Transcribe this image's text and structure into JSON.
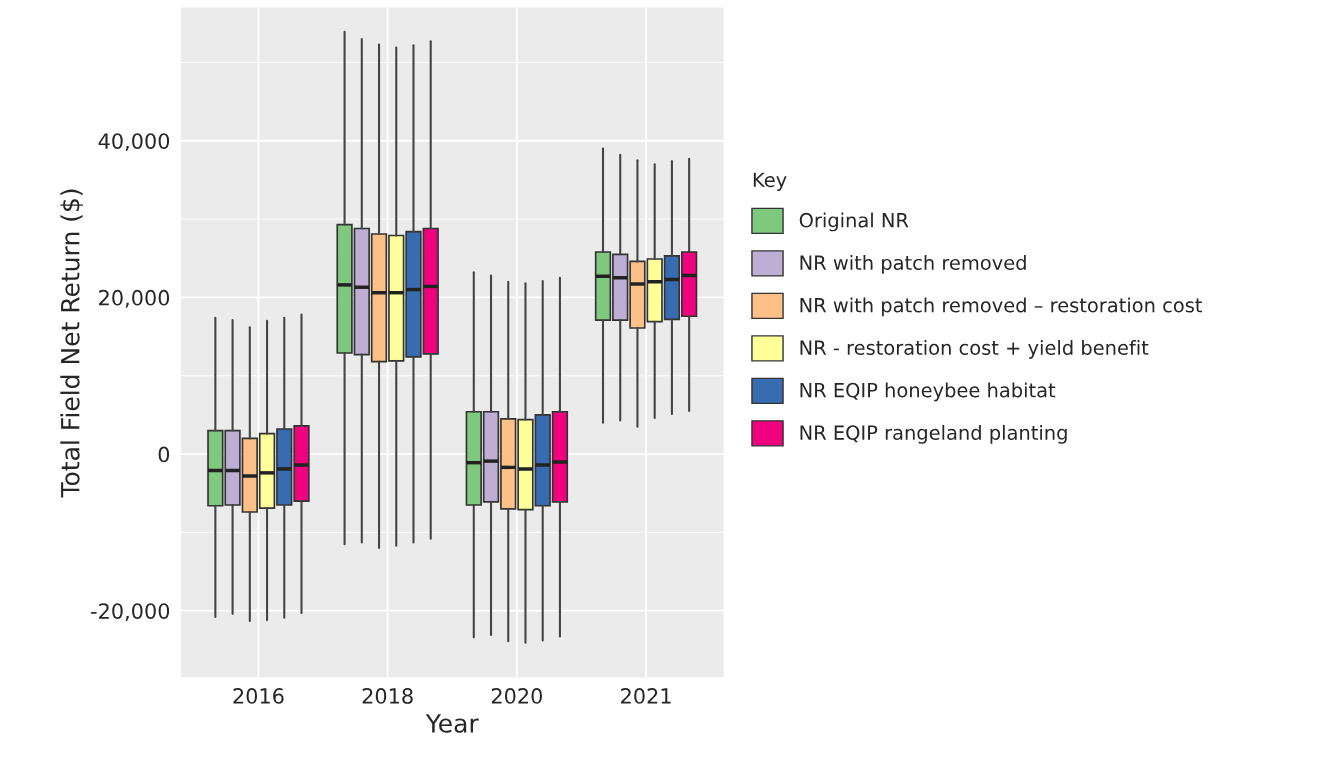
{
  "chart_data": {
    "type": "box",
    "xlabel": "Year",
    "ylabel": "Total Field Net Return ($)",
    "legend_title": "Key",
    "legend": "right",
    "grid": true,
    "categories": [
      "2016",
      "2018",
      "2020",
      "2021"
    ],
    "ylim": [
      -28500,
      57000
    ],
    "yticks": [
      {
        "value": -20000,
        "label": "-20,000"
      },
      {
        "value": 0,
        "label": "0"
      },
      {
        "value": 20000,
        "label": "20,000"
      },
      {
        "value": 40000,
        "label": "40,000"
      }
    ],
    "series": [
      {
        "name": "Original NR",
        "color": "#7fc97f",
        "boxes": [
          {
            "low": -20800,
            "q1": -6600,
            "median": -2100,
            "q3": 3000,
            "high": 17400
          },
          {
            "low": -11500,
            "q1": 12900,
            "median": 21600,
            "q3": 29300,
            "high": 53900
          },
          {
            "low": -23400,
            "q1": -6500,
            "median": -1100,
            "q3": 5400,
            "high": 23200
          },
          {
            "low": 4000,
            "q1": 17100,
            "median": 22700,
            "q3": 25800,
            "high": 39000
          }
        ]
      },
      {
        "name": "NR with patch removed",
        "color": "#beaed4",
        "boxes": [
          {
            "low": -20400,
            "q1": -6500,
            "median": -2100,
            "q3": 3000,
            "high": 17100
          },
          {
            "low": -11300,
            "q1": 12700,
            "median": 21300,
            "q3": 28800,
            "high": 53000
          },
          {
            "low": -23100,
            "q1": -6100,
            "median": -900,
            "q3": 5400,
            "high": 22800
          },
          {
            "low": 4300,
            "q1": 17100,
            "median": 22500,
            "q3": 25500,
            "high": 38200
          }
        ]
      },
      {
        "name": "NR with patch removed – restoration cost",
        "color": "#fdc086",
        "boxes": [
          {
            "low": -21300,
            "q1": -7400,
            "median": -2800,
            "q3": 2000,
            "high": 16200
          },
          {
            "low": -12000,
            "q1": 11800,
            "median": 20600,
            "q3": 28100,
            "high": 52300
          },
          {
            "low": -23900,
            "q1": -7000,
            "median": -1700,
            "q3": 4500,
            "high": 22000
          },
          {
            "low": 3500,
            "q1": 16100,
            "median": 21700,
            "q3": 24600,
            "high": 37500
          }
        ]
      },
      {
        "name": "NR - restoration cost + yield benefit",
        "color": "#ffff99",
        "boxes": [
          {
            "low": -21200,
            "q1": -6900,
            "median": -2400,
            "q3": 2600,
            "high": 17000
          },
          {
            "low": -11700,
            "q1": 11900,
            "median": 20600,
            "q3": 27900,
            "high": 51900
          },
          {
            "low": -24100,
            "q1": -7100,
            "median": -1900,
            "q3": 4400,
            "high": 21800
          },
          {
            "low": 4600,
            "q1": 16900,
            "median": 22000,
            "q3": 24900,
            "high": 37000
          }
        ]
      },
      {
        "name": "NR EQIP honeybee habitat",
        "color": "#386cb0",
        "boxes": [
          {
            "low": -20900,
            "q1": -6500,
            "median": -1900,
            "q3": 3200,
            "high": 17400
          },
          {
            "low": -11300,
            "q1": 12400,
            "median": 21000,
            "q3": 28400,
            "high": 52200
          },
          {
            "low": -23800,
            "q1": -6600,
            "median": -1400,
            "q3": 5000,
            "high": 22100
          },
          {
            "low": 5100,
            "q1": 17200,
            "median": 22300,
            "q3": 25300,
            "high": 37400
          }
        ]
      },
      {
        "name": "NR EQIP rangeland planting",
        "color": "#f0027f",
        "boxes": [
          {
            "low": -20300,
            "q1": -6000,
            "median": -1400,
            "q3": 3600,
            "high": 17800
          },
          {
            "low": -10800,
            "q1": 12800,
            "median": 21400,
            "q3": 28800,
            "high": 52700
          },
          {
            "low": -23300,
            "q1": -6100,
            "median": -1000,
            "q3": 5400,
            "high": 22500
          },
          {
            "low": 5500,
            "q1": 17600,
            "median": 22800,
            "q3": 25800,
            "high": 37700
          }
        ]
      }
    ]
  }
}
